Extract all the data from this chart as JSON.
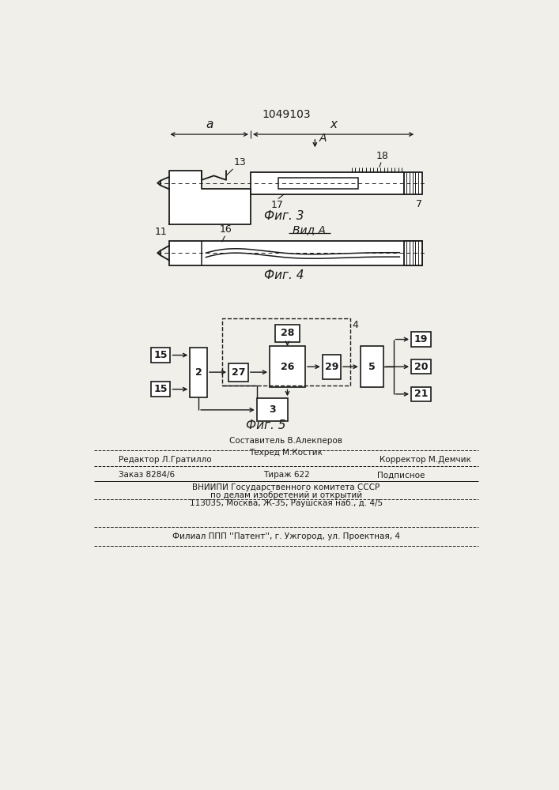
{
  "title": "1049103",
  "bg_color": "#f0efea",
  "fig3_label": "Фиг. 3",
  "fig4_label": "Фиг. 4",
  "fig5_label": "Фиг. 5",
  "vid_a_label": "Вид A"
}
